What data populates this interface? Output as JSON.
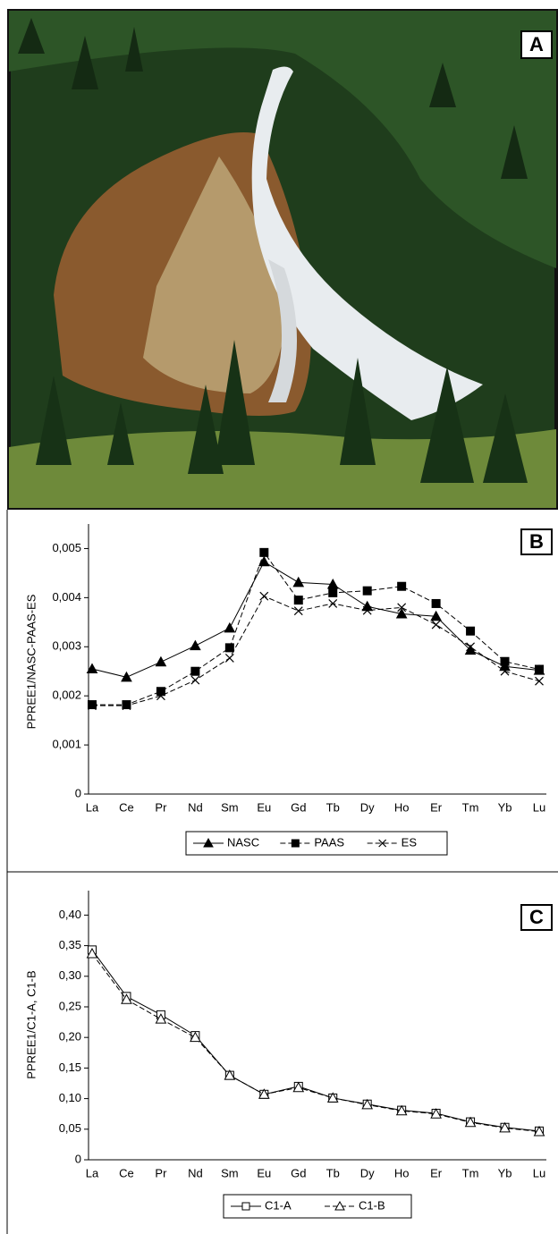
{
  "photo": {
    "panel_label": "A"
  },
  "chart_data": [
    {
      "type": "line",
      "panel_label": "B",
      "y_label": "PPREE1/NASC-PAAS-ES",
      "categories": [
        "La",
        "Ce",
        "Pr",
        "Nd",
        "Sm",
        "Eu",
        "Gd",
        "Tb",
        "Dy",
        "Ho",
        "Er",
        "Tm",
        "Yb",
        "Lu"
      ],
      "ylim": [
        0,
        0.0055
      ],
      "yticks": [
        0,
        {
          "value": 0.001,
          "label": "0,001"
        },
        {
          "value": 0.002,
          "label": "0,002"
        },
        {
          "value": 0.003,
          "label": "0,003"
        },
        {
          "value": 0.004,
          "label": "0,004"
        },
        {
          "value": 0.005,
          "label": "0,005"
        }
      ],
      "series": [
        {
          "name": "NASC",
          "color": "#000000",
          "dash": "solid",
          "marker": "triangle",
          "filled": true,
          "values": [
            0.00255,
            0.00238,
            0.00269,
            0.00302,
            0.00338,
            0.00473,
            0.00431,
            0.00427,
            0.00382,
            0.00367,
            0.00362,
            0.00293,
            0.0026,
            0.00252
          ]
        },
        {
          "name": "PAAS",
          "color": "#000000",
          "dash": "dashed",
          "marker": "square",
          "filled": true,
          "values": [
            0.00182,
            0.00182,
            0.00209,
            0.0025,
            0.00298,
            0.00492,
            0.00395,
            0.0041,
            0.00414,
            0.00423,
            0.00388,
            0.00332,
            0.0027,
            0.00254
          ]
        },
        {
          "name": "ES",
          "color": "#000000",
          "dash": "dashed",
          "marker": "x",
          "filled": false,
          "values": [
            0.0018,
            0.0018,
            0.002,
            0.00232,
            0.00277,
            0.00403,
            0.00373,
            0.00388,
            0.00374,
            0.0038,
            0.00345,
            0.003,
            0.0025,
            0.0023
          ]
        }
      ]
    },
    {
      "type": "line",
      "panel_label": "C",
      "y_label": "PPREE1/C1-A, C1-B",
      "categories": [
        "La",
        "Ce",
        "Pr",
        "Nd",
        "Sm",
        "Eu",
        "Gd",
        "Tb",
        "Dy",
        "Ho",
        "Er",
        "Tm",
        "Yb",
        "Lu"
      ],
      "ylim": [
        0,
        0.44
      ],
      "yticks": [
        0,
        {
          "value": 0.05,
          "label": "0,05"
        },
        {
          "value": 0.1,
          "label": "0,10"
        },
        {
          "value": 0.15,
          "label": "0,15"
        },
        {
          "value": 0.2,
          "label": "0,20"
        },
        {
          "value": 0.25,
          "label": "0,25"
        },
        {
          "value": 0.3,
          "label": "0,30"
        },
        {
          "value": 0.35,
          "label": "0,35"
        },
        {
          "value": 0.4,
          "label": "0,40"
        }
      ],
      "series": [
        {
          "name": "C1-A",
          "color": "#000000",
          "dash": "solid",
          "marker": "square",
          "filled": false,
          "values": [
            0.343,
            0.267,
            0.237,
            0.203,
            0.138,
            0.107,
            0.12,
            0.101,
            0.091,
            0.081,
            0.076,
            0.062,
            0.053,
            0.047
          ]
        },
        {
          "name": "C1-B",
          "color": "#000000",
          "dash": "dashed",
          "marker": "triangle",
          "filled": false,
          "values": [
            0.337,
            0.262,
            0.23,
            0.2,
            0.138,
            0.107,
            0.118,
            0.101,
            0.09,
            0.08,
            0.075,
            0.061,
            0.052,
            0.046
          ]
        }
      ]
    }
  ]
}
